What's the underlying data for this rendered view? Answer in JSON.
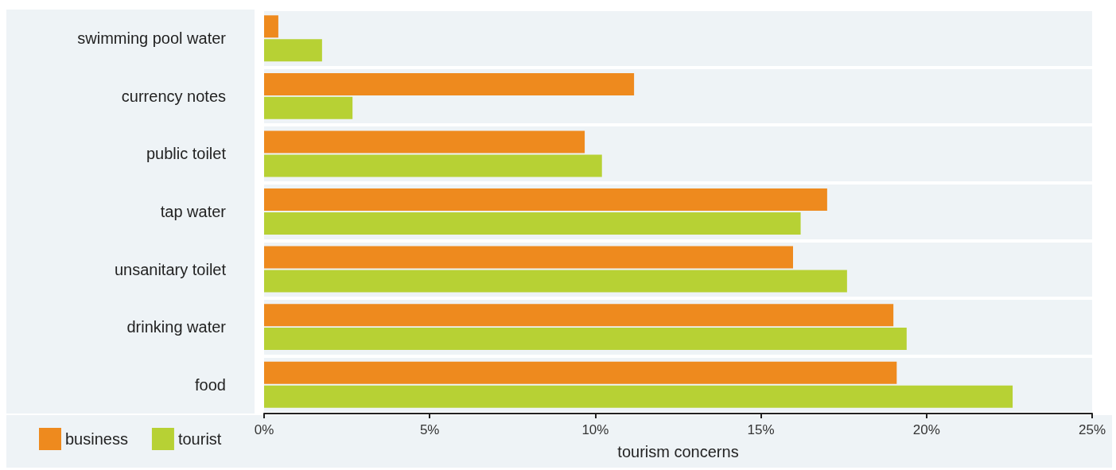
{
  "chart_data": {
    "type": "bar",
    "orientation": "horizontal",
    "xlabel": "tourism concerns",
    "categories": [
      "swimming pool water",
      "currency notes",
      "public toilet",
      "tap water",
      "unsanitary toilet",
      "drinking water",
      "food"
    ],
    "series": [
      {
        "name": "business",
        "color": "#ee8a1e",
        "values": [
          0.43,
          11.17,
          9.68,
          17.0,
          15.97,
          19.0,
          19.1
        ]
      },
      {
        "name": "tourist",
        "color": "#b7d134",
        "values": [
          1.75,
          2.67,
          10.2,
          16.2,
          17.6,
          19.4,
          22.6
        ]
      }
    ],
    "xlim": [
      0,
      25
    ],
    "xticks": [
      {
        "value": 0,
        "label": "0%"
      },
      {
        "value": 5,
        "label": "5%"
      },
      {
        "value": 10,
        "label": "10%"
      },
      {
        "value": 15,
        "label": "15%"
      },
      {
        "value": 20,
        "label": "20%"
      },
      {
        "value": 25,
        "label": "25%"
      }
    ],
    "legend": "bottom left",
    "grid": false
  }
}
